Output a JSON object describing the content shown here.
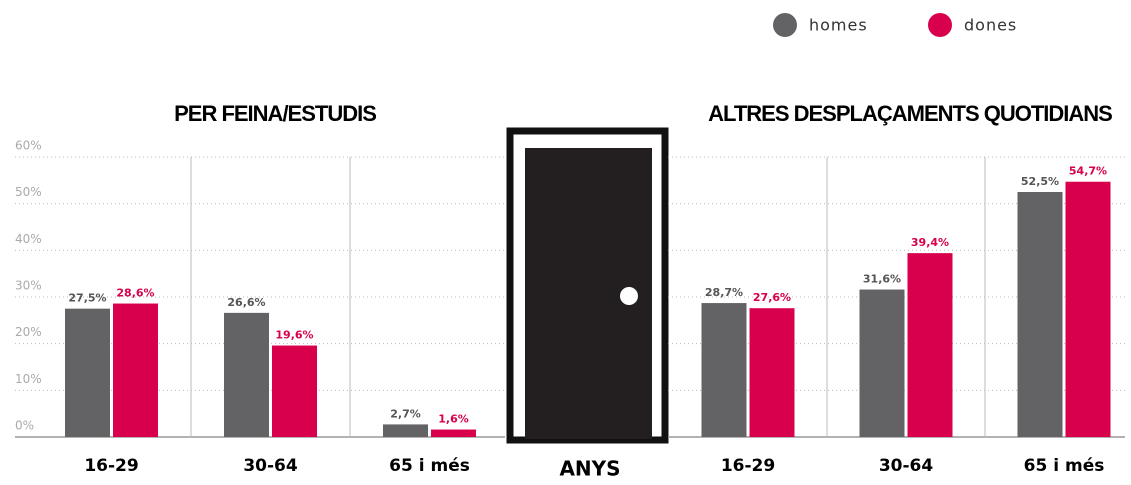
{
  "chart_data": [
    {
      "type": "bar",
      "title": "PER FEINA/ESTUDIS",
      "xlabel": "ANYS",
      "categories": [
        "16-29",
        "30-64",
        "65 i més"
      ],
      "series": [
        {
          "name": "homes",
          "color": "#636366",
          "values": [
            27.5,
            26.6,
            2.7
          ],
          "value_labels": [
            "27,5%",
            "26,6%",
            "2,7%"
          ]
        },
        {
          "name": "dones",
          "color": "#d8004c",
          "values": [
            28.6,
            19.6,
            1.6
          ],
          "value_labels": [
            "28,6%",
            "19,6%",
            "1,6%"
          ]
        }
      ],
      "ylim": [
        0,
        60
      ],
      "yticks": [
        {
          "value": 0,
          "label": "0%"
        },
        {
          "value": 10,
          "label": "10%"
        },
        {
          "value": 20,
          "label": "20%"
        },
        {
          "value": 30,
          "label": "30%"
        },
        {
          "value": 40,
          "label": "40%"
        },
        {
          "value": 50,
          "label": "50%"
        },
        {
          "value": 60,
          "label": "60%"
        }
      ],
      "grid": true
    },
    {
      "type": "bar",
      "title": "ALTRES DESPLAÇAMENTS QUOTIDIANS",
      "categories": [
        "16-29",
        "30-64",
        "65 i més"
      ],
      "series": [
        {
          "color": "#636366",
          "values": [
            28.7,
            31.6,
            52.5
          ],
          "value_labels": [
            "28,7%",
            "31,6%",
            "52,5%"
          ]
        },
        {
          "color": "#d8004c",
          "values": [
            27.6,
            39.4,
            54.7
          ],
          "value_labels": [
            "27,6%",
            "39,4%",
            "54,7%"
          ]
        }
      ],
      "ylim": [
        0,
        60
      ],
      "yticks": [
        0,
        10,
        20,
        30,
        40,
        50,
        60
      ],
      "grid": true
    }
  ]
}
